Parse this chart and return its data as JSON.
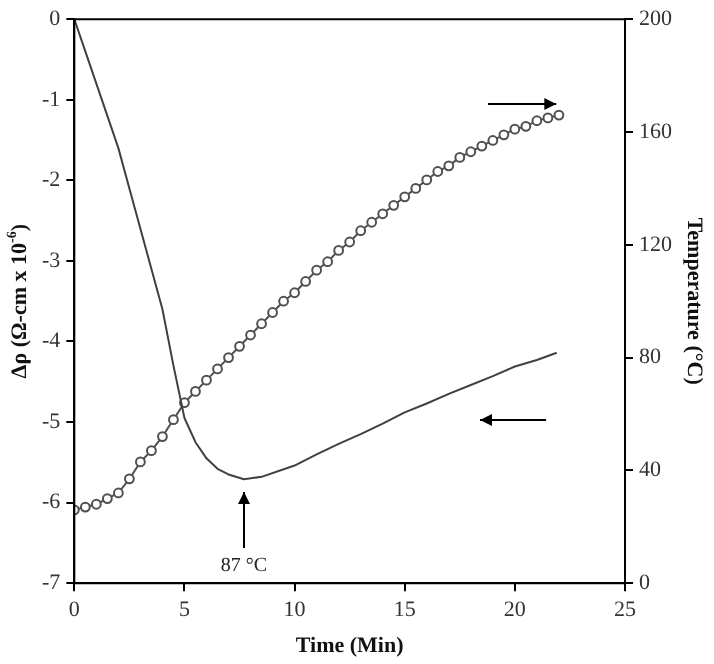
{
  "chart_data": {
    "type": "line",
    "xlabel": "Time (Min)",
    "ylabel": "Δρ (Ω-cm x 10$^{-6}$)",
    "y2label": "Temperature (°C)",
    "xlim": [
      0,
      25
    ],
    "xticks": [
      0,
      5,
      10,
      15,
      20,
      25
    ],
    "ylim": [
      -7,
      0
    ],
    "yticks": [
      -7,
      -6,
      -5,
      -4,
      -3,
      -2,
      -1,
      0
    ],
    "y2lim": [
      0,
      200
    ],
    "y2ticks": [
      0,
      40,
      80,
      120,
      160,
      200
    ],
    "annotations": [
      {
        "text": "87 °C",
        "x": 7.7,
        "y": -5.71
      }
    ],
    "series": [
      {
        "type": "line",
        "color": "#404040",
        "marker": "none",
        "x": [
          0,
          0.5,
          1,
          1.5,
          2,
          2.5,
          3,
          3.5,
          4,
          4.5,
          5,
          5.5,
          6,
          6.5,
          7,
          7.7,
          8.5,
          10,
          11,
          12,
          13,
          14,
          15,
          16,
          17,
          18,
          19,
          20,
          21,
          21.9
        ],
        "values": [
          0,
          -0.4,
          -0.8,
          -1.2,
          -1.6,
          -2.1,
          -2.6,
          -3.1,
          -3.6,
          -4.3,
          -4.95,
          -5.25,
          -5.45,
          -5.58,
          -5.65,
          -5.71,
          -5.68,
          -5.54,
          -5.4,
          -5.27,
          -5.15,
          -5.02,
          -4.88,
          -4.77,
          -4.65,
          -4.54,
          -4.43,
          -4.31,
          -4.23,
          -4.14
        ]
      },
      {
        "type": "line",
        "axis": "y2",
        "color": "#505050",
        "marker": "circle",
        "x": [
          0,
          0.5,
          1,
          1.5,
          2,
          2.5,
          3,
          3.5,
          4,
          4.5,
          5,
          5.5,
          6,
          6.5,
          7,
          7.5,
          8,
          8.5,
          9,
          9.5,
          10,
          10.5,
          11,
          11.5,
          12,
          12.5,
          13,
          13.5,
          14,
          14.5,
          15,
          15.5,
          16,
          16.5,
          17,
          17.5,
          18,
          18.5,
          19,
          19.5,
          20,
          20.5,
          21,
          21.5,
          22
        ],
        "values": [
          26,
          27,
          28,
          30,
          32,
          37,
          43,
          47,
          52,
          58,
          64,
          68,
          72,
          76,
          80,
          84,
          88,
          92,
          96,
          100,
          103,
          107,
          111,
          114,
          118,
          121,
          125,
          128,
          131,
          134,
          137,
          140,
          143,
          146,
          148,
          151,
          153,
          155,
          157,
          159,
          161,
          162,
          164,
          165,
          166
        ]
      }
    ]
  }
}
